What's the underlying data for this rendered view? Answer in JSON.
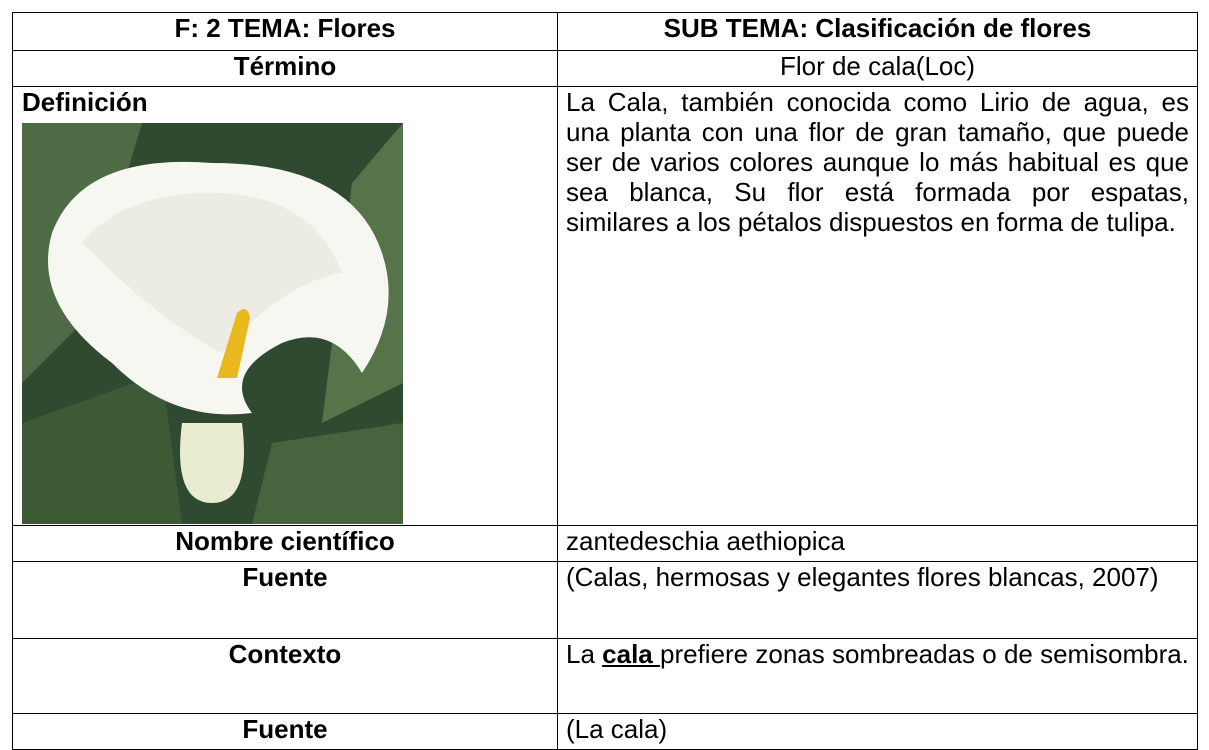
{
  "table": {
    "header": [
      "F: 2  TEMA: Flores",
      "SUB TEMA: Clasificación de flores"
    ],
    "rows": [
      [
        "Término",
        "Flor de cala(Loc)"
      ],
      [
        "Definición",
        "La Cala, también conocida como Lirio de agua, es una planta con una flor de gran tamaño, que puede ser de varios colores aunque lo más habitual es que sea blanca, Su flor está formada por espatas, similares a los pétalos dispuestos en forma de tulipa."
      ],
      [
        "Nombre científico",
        "zantedeschia aethiopica"
      ],
      [
        "Fuente",
        "(Calas, hermosas y elegantes flores blancas, 2007)"
      ],
      [
        "Contexto",
        [
          "La ",
          "cala ",
          "prefiere zonas sombreadas o de semisombra."
        ]
      ],
      [
        "Fuente",
        "(La cala)"
      ]
    ]
  }
}
